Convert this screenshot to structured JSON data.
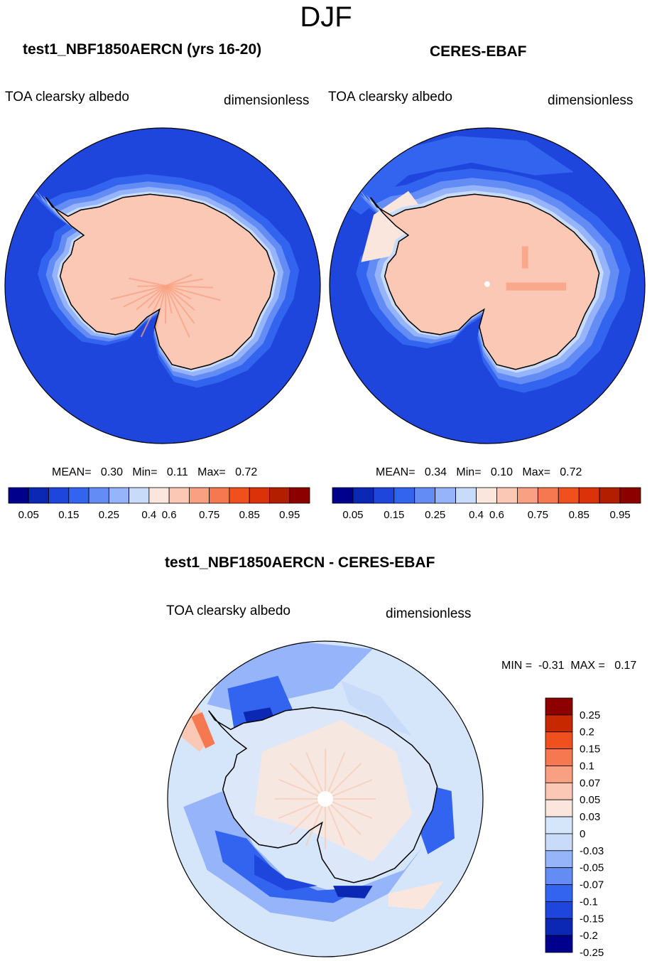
{
  "figure": {
    "season": "DJF",
    "diff_title": "test1_NBF1850AERCN - CERES-EBAF"
  },
  "palette": {
    "abs": [
      "#00008c",
      "#0a28b4",
      "#1e46dc",
      "#3264f0",
      "#648cf5",
      "#96b4fa",
      "#c8dcfa",
      "#fae6dc",
      "#fac8b4",
      "#faa082",
      "#f57850",
      "#f0501e",
      "#dc320a",
      "#b41e00",
      "#8c0000"
    ],
    "diff": [
      "#00008c",
      "#0a28b4",
      "#1e46dc",
      "#3264f0",
      "#648cf5",
      "#96b4fa",
      "#c8dcfa",
      "#d6e6fa",
      "#fae6dc",
      "#fac8b4",
      "#faa082",
      "#f57850",
      "#f0501e",
      "#c82800",
      "#8c0000"
    ],
    "continent_abs": "#fac8b4",
    "continent_diff": "#dce8fa",
    "ocean_abs_left": "#1e46dc",
    "ocean_abs_right": "#1e46dc",
    "ocean_diff": "#d6e6fa"
  },
  "chart_data": [
    {
      "type": "polar-contour-map",
      "title": "test1_NBF1850AERCN (yrs 16-20)",
      "variable": "TOA clearsky albedo",
      "units": "dimensionless",
      "stats": {
        "mean_label": "MEAN=",
        "mean": "0.30",
        "min_label": "Min=",
        "min": "0.11",
        "max_label": "Max=",
        "max": "0.72"
      },
      "colorbar": {
        "orientation": "horizontal",
        "labels": [
          "0.05",
          "0.15",
          "0.25",
          "0.4",
          "0.6",
          "0.75",
          "0.85",
          "0.95"
        ],
        "n_bins": 15
      }
    },
    {
      "type": "polar-contour-map",
      "title": "CERES-EBAF",
      "variable": "TOA clearsky albedo",
      "units": "dimensionless",
      "stats": {
        "mean_label": "MEAN=",
        "mean": "0.34",
        "min_label": "Min=",
        "min": "0.10",
        "max_label": "Max=",
        "max": "0.72"
      },
      "colorbar": {
        "orientation": "horizontal",
        "labels": [
          "0.05",
          "0.15",
          "0.25",
          "0.4",
          "0.6",
          "0.75",
          "0.85",
          "0.95"
        ],
        "n_bins": 15
      }
    },
    {
      "type": "polar-contour-map",
      "title": "test1_NBF1850AERCN - CERES-EBAF",
      "variable": "TOA clearsky albedo",
      "units": "dimensionless",
      "stats": {
        "min_label": "MIN =",
        "min": "-0.31",
        "max_label": "MAX =",
        "max": "0.17"
      },
      "colorbar": {
        "orientation": "vertical",
        "labels": [
          "0.25",
          "0.2",
          "0.15",
          "0.1",
          "0.07",
          "0.05",
          "0.03",
          "0",
          "-0.03",
          "-0.05",
          "-0.07",
          "-0.1",
          "-0.15",
          "-0.2",
          "-0.25"
        ],
        "n_bins": 15
      }
    }
  ]
}
